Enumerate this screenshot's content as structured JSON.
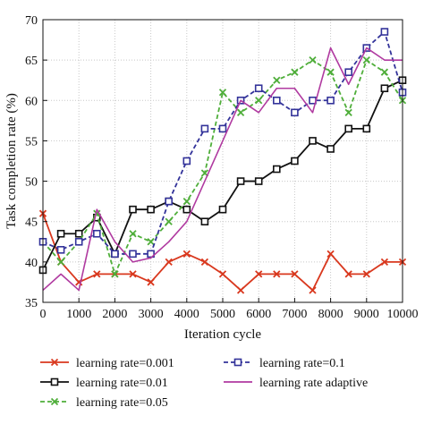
{
  "chart_data": {
    "type": "line",
    "xlabel": "Iteration cycle",
    "ylabel": "Task completion rate (%)",
    "xlim": [
      0,
      10000
    ],
    "ylim": [
      35,
      70
    ],
    "xticks": [
      0,
      1000,
      2000,
      3000,
      4000,
      5000,
      6000,
      7000,
      8000,
      9000,
      10000
    ],
    "yticks": [
      35,
      40,
      45,
      50,
      55,
      60,
      65,
      70
    ],
    "grid": true,
    "legend_position": "bottom",
    "x": [
      0,
      500,
      1000,
      1500,
      2000,
      2500,
      3000,
      3500,
      4000,
      4500,
      5000,
      5500,
      6000,
      6500,
      7000,
      7500,
      8000,
      8500,
      9000,
      9500,
      10000
    ],
    "series": [
      {
        "name": "learning rate=0.001",
        "color": "#d9381e",
        "marker": "x",
        "dash": "solid",
        "values": [
          46,
          40,
          37.5,
          38.5,
          38.5,
          38.5,
          37.5,
          40,
          41,
          40,
          38.5,
          36.5,
          38.5,
          38.5,
          38.5,
          36.5,
          41,
          38.5,
          38.5,
          40,
          40
        ]
      },
      {
        "name": "learning rate=0.01",
        "color": "#111111",
        "marker": "square",
        "dash": "solid",
        "values": [
          39,
          43.5,
          43.5,
          45.5,
          41,
          46.5,
          46.5,
          47.5,
          46.5,
          45,
          46.5,
          50,
          50,
          51.5,
          52.5,
          55,
          54,
          56.5,
          56.5,
          61.5,
          62.5
        ]
      },
      {
        "name": "learning rate=0.05",
        "color": "#4fae3a",
        "marker": "x",
        "dash": "dashed",
        "values": [
          42.5,
          40,
          42.5,
          46,
          38.5,
          43.5,
          42.5,
          45,
          47.5,
          51,
          61,
          58.5,
          60,
          62.5,
          63.5,
          65,
          63.5,
          58.5,
          65,
          63.5,
          60
        ]
      },
      {
        "name": "learning rate=0.1",
        "color": "#33339a",
        "marker": "square",
        "dash": "dashed",
        "values": [
          42.5,
          41.5,
          42.5,
          43.5,
          41,
          41,
          41,
          47.5,
          52.5,
          56.5,
          56.5,
          60,
          61.5,
          60,
          58.5,
          60,
          60,
          63.5,
          66.5,
          68.5,
          61
        ]
      },
      {
        "name": "learning rate adaptive",
        "color": "#b03aa0",
        "marker": "none",
        "dash": "solid",
        "values": [
          36.5,
          38.5,
          36.5,
          46.5,
          42.5,
          40,
          40.5,
          42.5,
          45,
          50,
          55,
          60,
          58.5,
          61.5,
          61.5,
          58.5,
          66.5,
          62,
          66.5,
          65,
          65
        ]
      }
    ]
  }
}
